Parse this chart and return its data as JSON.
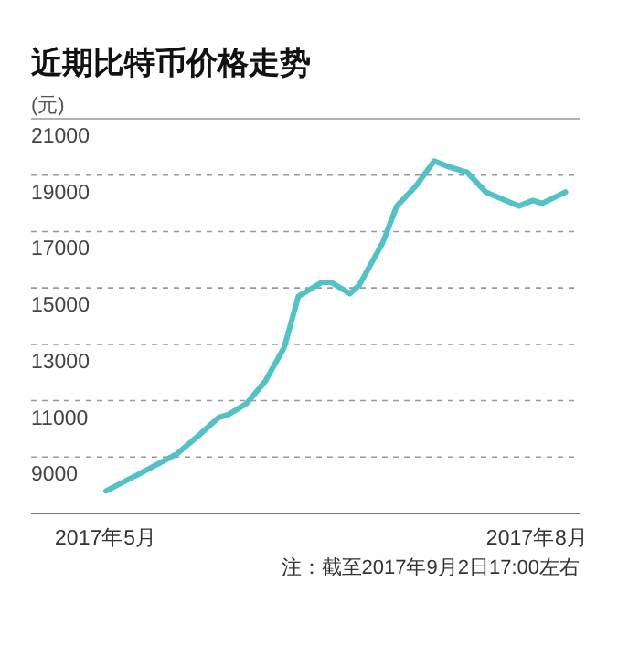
{
  "chart_data": {
    "type": "line",
    "title": "近期比特币价格走势",
    "ylabel": "(元)",
    "series": [
      {
        "color": "#4fc3c8",
        "x": [
          "2017-05-01",
          "2017-05-08",
          "2017-05-16",
          "2017-05-21",
          "2017-05-25",
          "2017-05-27",
          "2017-05-31",
          "2017-06-04",
          "2017-06-08",
          "2017-06-11",
          "2017-06-16",
          "2017-06-18",
          "2017-06-22",
          "2017-06-24",
          "2017-06-29",
          "2017-07-02",
          "2017-07-06",
          "2017-07-10",
          "2017-07-13",
          "2017-07-17",
          "2017-07-21",
          "2017-07-28",
          "2017-07-31",
          "2017-08-02",
          "2017-08-07"
        ],
        "values": [
          7800,
          8400,
          9100,
          9800,
          10400,
          10500,
          10900,
          11700,
          12900,
          14700,
          15200,
          15200,
          14800,
          15100,
          16600,
          17900,
          18600,
          19500,
          19300,
          19100,
          18400,
          17900,
          18100,
          18000,
          18400
        ]
      }
    ],
    "xlim": [
      "2017-04-15",
      "2017-08-10"
    ],
    "xticks": [
      {
        "value": "2017-05-01",
        "label": "2017年5月"
      },
      {
        "value": "2017-08-01",
        "label": "2017年8月"
      }
    ],
    "ylim": [
      7000,
      21000
    ],
    "yticks": [
      9000,
      11000,
      13000,
      15000,
      17000,
      19000,
      21000
    ],
    "grid": "y",
    "line_style": "solid",
    "marker": "none",
    "annotations": [
      "注：截至2017年9月2日17:00左右"
    ]
  }
}
